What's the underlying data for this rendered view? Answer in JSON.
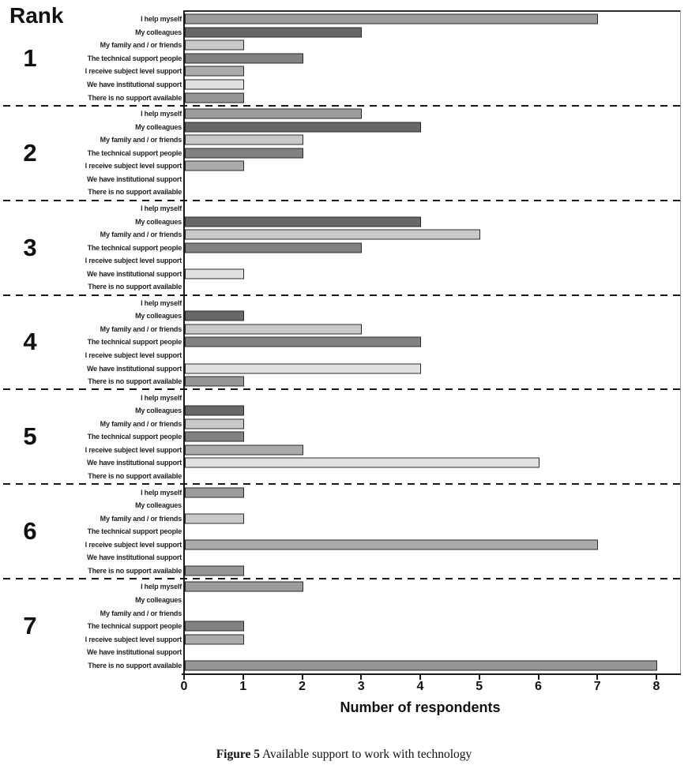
{
  "page": {
    "rank_header": "Rank",
    "caption_bold": "Figure 5",
    "caption_rest": " Available support to work with technology"
  },
  "chart_data": {
    "type": "bar",
    "orientation": "horizontal",
    "title": "",
    "xlabel": "Number of respondents",
    "xlim": [
      0,
      8
    ],
    "x_ticks": [
      0,
      1,
      2,
      3,
      4,
      5,
      6,
      7,
      8
    ],
    "grid": false,
    "legend": "none",
    "group_axis_title": "Rank",
    "categories": [
      "I help myself",
      "My colleagues",
      "My family and / or friends",
      "The technical support people",
      "I receive subject level support",
      "We have institutional support",
      "There is no support available"
    ],
    "category_colors": [
      "#9c9c9c",
      "#686868",
      "#c9c9c9",
      "#828282",
      "#ababab",
      "#e0e0e0",
      "#969696"
    ],
    "groups": [
      {
        "rank": "1",
        "values": [
          7,
          3,
          1,
          2,
          1,
          1,
          1
        ]
      },
      {
        "rank": "2",
        "values": [
          3,
          4,
          2,
          2,
          1,
          0,
          0
        ]
      },
      {
        "rank": "3",
        "values": [
          0,
          4,
          5,
          3,
          0,
          1,
          0
        ]
      },
      {
        "rank": "4",
        "values": [
          0,
          1,
          3,
          4,
          0,
          4,
          1
        ]
      },
      {
        "rank": "5",
        "values": [
          0,
          1,
          1,
          1,
          2,
          6,
          0
        ]
      },
      {
        "rank": "6",
        "values": [
          1,
          0,
          1,
          0,
          7,
          0,
          1
        ]
      },
      {
        "rank": "7",
        "values": [
          2,
          0,
          0,
          1,
          1,
          0,
          8
        ]
      }
    ]
  }
}
